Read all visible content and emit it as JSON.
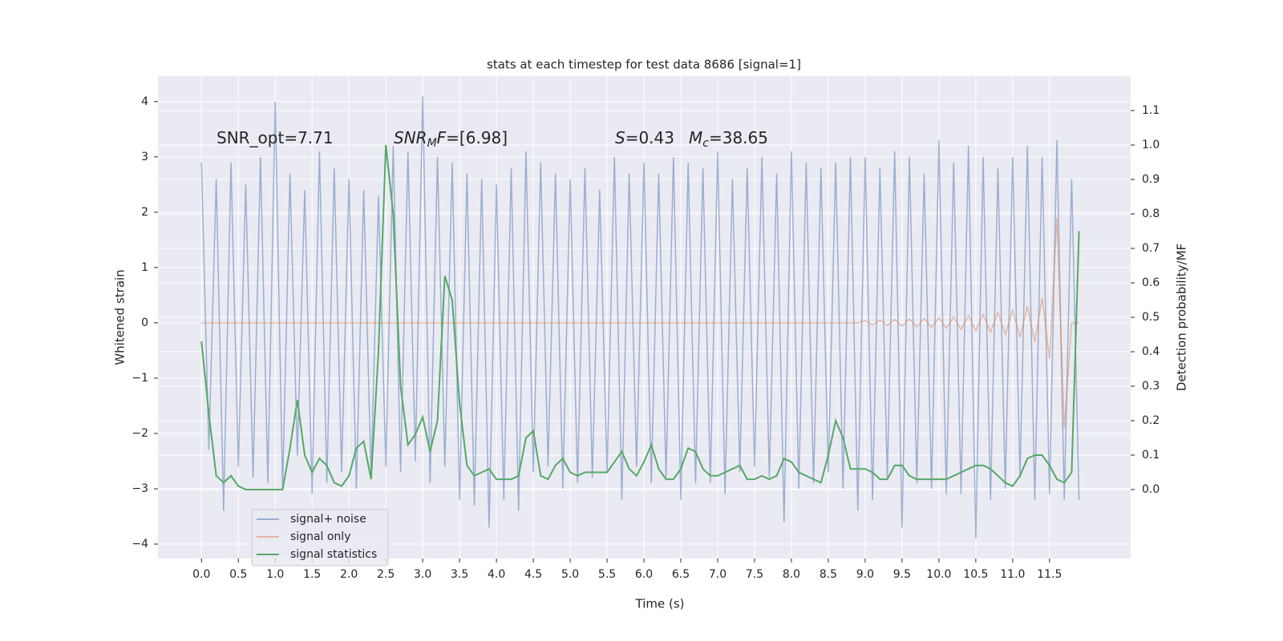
{
  "chart_data": {
    "type": "line",
    "title": "stats at each timestep for test data 8686 [signal=1]",
    "xlabel": "Time (s)",
    "ylabel": "Whitened strain",
    "y2label": "Detection probability/MF",
    "annotations": [
      {
        "parts": [
          "SNR_opt=7.71"
        ]
      },
      {
        "parts": [
          "SNR",
          "M",
          "F",
          "=[6.98]"
        ]
      },
      {
        "parts": [
          "S",
          "=0.43",
          "M",
          "c",
          "=38.65"
        ]
      }
    ],
    "x": [
      0,
      0.1,
      0.2,
      0.3,
      0.4,
      0.5,
      0.6,
      0.7,
      0.8,
      0.9,
      1.0,
      1.1,
      1.2,
      1.3,
      1.4,
      1.5,
      1.6,
      1.7,
      1.8,
      1.9,
      2.0,
      2.1,
      2.2,
      2.3,
      2.4,
      2.5,
      2.6,
      2.7,
      2.8,
      2.9,
      3.0,
      3.1,
      3.2,
      3.3,
      3.4,
      3.5,
      3.6,
      3.7,
      3.8,
      3.9,
      4.0,
      4.1,
      4.2,
      4.3,
      4.4,
      4.5,
      4.6,
      4.7,
      4.8,
      4.9,
      5.0,
      5.1,
      5.2,
      5.3,
      5.4,
      5.5,
      5.6,
      5.7,
      5.8,
      5.9,
      6.0,
      6.1,
      6.2,
      6.3,
      6.4,
      6.5,
      6.6,
      6.7,
      6.8,
      6.9,
      7.0,
      7.1,
      7.2,
      7.3,
      7.4,
      7.5,
      7.6,
      7.7,
      7.8,
      7.9,
      8.0,
      8.1,
      8.2,
      8.3,
      8.4,
      8.5,
      8.6,
      8.7,
      8.8,
      8.9,
      9.0,
      9.1,
      9.2,
      9.3,
      9.4,
      9.5,
      9.6,
      9.7,
      9.8,
      9.9,
      10.0,
      10.1,
      10.2,
      10.3,
      10.4,
      10.5,
      10.6,
      10.7,
      10.8,
      10.9,
      11.0,
      11.1,
      11.2,
      11.3,
      11.4,
      11.5,
      11.6,
      11.7,
      11.8,
      11.9
    ],
    "series": [
      {
        "name": "signal+ noise",
        "color": "#4c72b0",
        "alpha": 0.5,
        "values": [
          2.9,
          -2.3,
          2.6,
          -3.4,
          2.9,
          -2.6,
          2.5,
          -2.8,
          3.0,
          -2.9,
          4.0,
          -3.0,
          2.7,
          -2.4,
          2.4,
          -3.1,
          3.1,
          -2.9,
          2.8,
          -2.7,
          2.6,
          -3.0,
          2.4,
          -2.8,
          2.3,
          -2.6,
          3.2,
          -2.7,
          3.1,
          -2.5,
          4.1,
          -2.9,
          3.0,
          -2.6,
          2.9,
          -3.2,
          2.7,
          -3.3,
          2.6,
          -3.7,
          2.5,
          -3.2,
          2.8,
          -3.4,
          3.1,
          -2.7,
          2.9,
          -2.6,
          2.7,
          -3.0,
          2.6,
          -2.9,
          2.8,
          -2.8,
          2.4,
          -2.7,
          3.0,
          -3.2,
          2.7,
          -2.6,
          2.9,
          -2.9,
          2.7,
          -2.8,
          3.0,
          -3.2,
          2.9,
          -2.9,
          2.8,
          -2.9,
          3.1,
          -3.1,
          2.6,
          -2.7,
          2.8,
          -2.6,
          3.0,
          -2.8,
          2.7,
          -3.6,
          3.1,
          -3.0,
          2.9,
          -2.9,
          2.8,
          -2.7,
          2.9,
          -3.0,
          3.0,
          -3.4,
          3.0,
          -3.2,
          2.8,
          -2.8,
          3.1,
          -3.7,
          3.0,
          -2.9,
          2.7,
          -3.0,
          3.3,
          -3.1,
          2.9,
          -3.1,
          3.2,
          -3.9,
          3.0,
          -3.2,
          2.8,
          -3.0,
          3.0,
          -2.8,
          3.2,
          -3.2,
          3.0,
          -3.1,
          3.3,
          -3.2,
          2.6,
          -3.2
        ]
      },
      {
        "name": "signal only",
        "color": "#dd8452",
        "alpha": 0.5,
        "values": [
          0,
          0,
          0,
          0,
          0,
          0,
          0,
          0,
          0,
          0,
          0,
          0,
          0,
          0,
          0,
          0,
          0,
          0,
          0,
          0,
          0,
          0,
          0,
          0,
          0,
          0,
          0,
          0,
          0,
          0,
          0,
          0,
          0,
          0,
          0,
          0,
          0,
          0,
          0,
          0,
          0,
          0,
          0,
          0,
          0,
          0,
          0,
          0,
          0,
          0,
          0,
          0,
          0,
          0,
          0,
          0,
          0,
          0,
          0,
          0,
          0,
          0,
          0,
          0,
          0,
          0,
          0,
          0,
          0,
          0,
          0,
          0,
          0,
          0,
          0,
          0,
          0,
          0,
          0,
          0,
          0,
          0,
          0,
          0,
          0,
          0,
          0,
          0,
          0,
          0,
          0.04,
          -0.04,
          0.05,
          -0.05,
          0.06,
          -0.06,
          0.07,
          -0.07,
          0.08,
          -0.08,
          0.09,
          -0.1,
          0.11,
          -0.12,
          0.13,
          -0.14,
          0.15,
          -0.17,
          0.19,
          -0.21,
          0.23,
          -0.26,
          0.3,
          -0.35,
          0.45,
          -0.65,
          1.9,
          -1.9,
          0,
          0
        ]
      },
      {
        "name": "signal statistics",
        "color": "#55a868",
        "alpha": 1,
        "axis": "y2",
        "values": [
          0.43,
          0.22,
          0.04,
          0.02,
          0.04,
          0.01,
          0.0,
          0.0,
          0.0,
          0.0,
          0.0,
          0.0,
          0.12,
          0.26,
          0.1,
          0.05,
          0.09,
          0.07,
          0.02,
          0.01,
          0.04,
          0.12,
          0.14,
          0.03,
          0.4,
          1.0,
          0.8,
          0.3,
          0.13,
          0.16,
          0.21,
          0.11,
          0.2,
          0.62,
          0.55,
          0.25,
          0.07,
          0.04,
          0.05,
          0.06,
          0.03,
          0.03,
          0.03,
          0.04,
          0.15,
          0.17,
          0.04,
          0.03,
          0.07,
          0.09,
          0.05,
          0.04,
          0.05,
          0.05,
          0.05,
          0.05,
          0.08,
          0.11,
          0.06,
          0.04,
          0.08,
          0.13,
          0.06,
          0.03,
          0.03,
          0.06,
          0.12,
          0.11,
          0.06,
          0.04,
          0.04,
          0.05,
          0.06,
          0.07,
          0.03,
          0.03,
          0.04,
          0.03,
          0.04,
          0.09,
          0.08,
          0.05,
          0.04,
          0.03,
          0.02,
          0.1,
          0.2,
          0.15,
          0.06,
          0.06,
          0.06,
          0.05,
          0.03,
          0.03,
          0.07,
          0.07,
          0.04,
          0.03,
          0.03,
          0.03,
          0.03,
          0.03,
          0.04,
          0.05,
          0.06,
          0.07,
          0.07,
          0.06,
          0.04,
          0.02,
          0.01,
          0.04,
          0.09,
          0.1,
          0.1,
          0.07,
          0.03,
          0.02,
          0.05,
          0.75
        ]
      }
    ],
    "xlim": [
      -0.59,
      12.6
    ],
    "ylim": [
      -4.26,
      4.46
    ],
    "y2lim": [
      -0.2,
      1.2
    ],
    "xticks": [
      {
        "value": 0,
        "label": "0.0"
      },
      {
        "value": 0.5,
        "label": "0.5"
      },
      {
        "value": 1,
        "label": "1.0"
      },
      {
        "value": 1.5,
        "label": "1.5"
      },
      {
        "value": 2,
        "label": "2.0"
      },
      {
        "value": 2.5,
        "label": "2.5"
      },
      {
        "value": 3,
        "label": "3.0"
      },
      {
        "value": 3.5,
        "label": "3.5"
      },
      {
        "value": 4,
        "label": "4.0"
      },
      {
        "value": 4.5,
        "label": "4.5"
      },
      {
        "value": 5,
        "label": "5.0"
      },
      {
        "value": 5.5,
        "label": "5.5"
      },
      {
        "value": 6,
        "label": "6.0"
      },
      {
        "value": 6.5,
        "label": "6.5"
      },
      {
        "value": 7,
        "label": "7.0"
      },
      {
        "value": 7.5,
        "label": "7.5"
      },
      {
        "value": 8,
        "label": "8.0"
      },
      {
        "value": 8.5,
        "label": "8.5"
      },
      {
        "value": 9,
        "label": "9.0"
      },
      {
        "value": 9.5,
        "label": "9.5"
      },
      {
        "value": 10,
        "label": "10.0"
      },
      {
        "value": 10.5,
        "label": "10.5"
      },
      {
        "value": 11,
        "label": "11.0"
      },
      {
        "value": 11.5,
        "label": "11.5"
      }
    ],
    "yticks": [
      {
        "value": -4,
        "label": "−4"
      },
      {
        "value": -3,
        "label": "−3"
      },
      {
        "value": -2,
        "label": "−2"
      },
      {
        "value": -1,
        "label": "−1"
      },
      0,
      1,
      2,
      3,
      4
    ],
    "y2ticks": [
      {
        "value": 0,
        "label": "0.0"
      },
      {
        "value": 0.1,
        "label": "0.1"
      },
      {
        "value": 0.2,
        "label": "0.2"
      },
      {
        "value": 0.3,
        "label": "0.3"
      },
      {
        "value": 0.4,
        "label": "0.4"
      },
      {
        "value": 0.5,
        "label": "0.5"
      },
      {
        "value": 0.6,
        "label": "0.6"
      },
      {
        "value": 0.7,
        "label": "0.7"
      },
      {
        "value": 0.8,
        "label": "0.8"
      },
      {
        "value": 0.9,
        "label": "0.9"
      },
      {
        "value": 1,
        "label": "1.0"
      },
      {
        "value": 1.1,
        "label": "1.1"
      }
    ],
    "grid": true,
    "legend": "lower left",
    "background": "#eaeaf2"
  }
}
